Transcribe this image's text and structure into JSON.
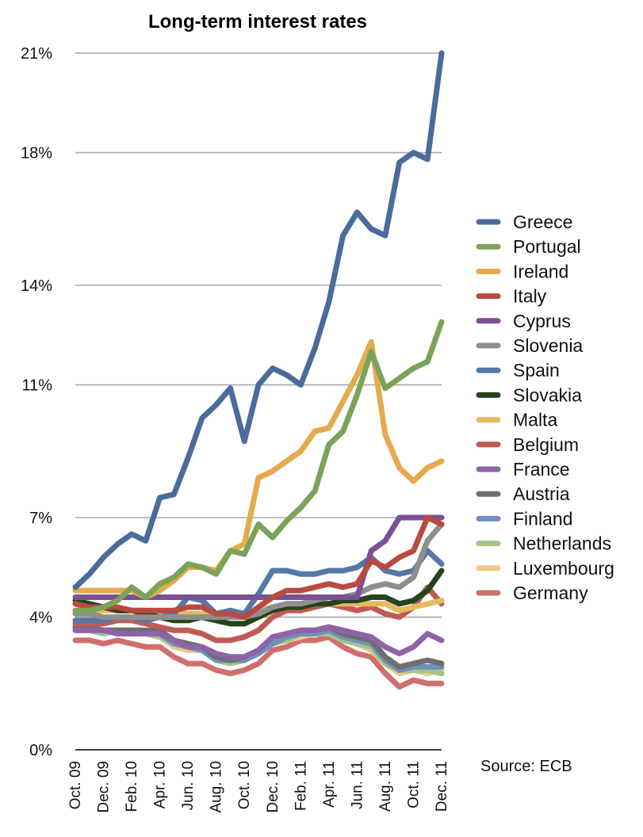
{
  "chart_data": {
    "type": "line",
    "title": "Long-term interest rates",
    "source_note": "Source: ECB",
    "ylim": [
      0,
      21
    ],
    "y_ticks": [
      0,
      4,
      7,
      11,
      14,
      18,
      21
    ],
    "y_tick_labels": [
      "0%",
      "4%",
      "7%",
      "11%",
      "14%",
      "18%",
      "21%"
    ],
    "x_tick_labels": [
      "Oct. 09",
      "Dec. 09",
      "Feb. 10",
      "Apr. 10",
      "Jun. 10",
      "Aug. 10",
      "Oct. 10",
      "Dec. 10",
      "Feb. 11",
      "Apr. 11",
      "Jun. 11",
      "Aug. 11",
      "Oct. 11",
      "Dec. 11"
    ],
    "x_tick_every": 2,
    "grid": "horizontal",
    "legend_position": "right",
    "categories": [
      "Oct. 09",
      "Nov. 09",
      "Dec. 09",
      "Jan. 10",
      "Feb. 10",
      "Mar. 10",
      "Apr. 10",
      "May 10",
      "Jun. 10",
      "Jul. 10",
      "Aug. 10",
      "Sep. 10",
      "Oct. 10",
      "Nov. 10",
      "Dec. 10",
      "Jan. 11",
      "Feb. 11",
      "Mar. 11",
      "Apr. 11",
      "May 11",
      "Jun. 11",
      "Jul. 11",
      "Aug. 11",
      "Sep. 11",
      "Oct. 11",
      "Nov. 11",
      "Dec. 11"
    ],
    "series": [
      {
        "name": "Greece",
        "color": "#4a6b9c",
        "values": [
          4.9,
          5.3,
          5.8,
          6.2,
          6.5,
          6.3,
          7.6,
          7.7,
          8.8,
          10.0,
          10.4,
          10.9,
          9.3,
          11.0,
          11.5,
          11.3,
          11.0,
          12.1,
          13.5,
          15.5,
          16.2,
          15.7,
          15.5,
          17.7,
          18.0,
          17.8,
          21.0
        ]
      },
      {
        "name": "Portugal",
        "color": "#7aa35a",
        "values": [
          4.2,
          4.2,
          4.3,
          4.5,
          4.9,
          4.6,
          5.0,
          5.2,
          5.6,
          5.5,
          5.3,
          6.0,
          5.9,
          6.8,
          6.4,
          6.9,
          7.3,
          7.8,
          9.2,
          9.6,
          10.7,
          12.0,
          10.9,
          11.2,
          11.5,
          11.7,
          12.9
        ]
      },
      {
        "name": "Ireland",
        "color": "#e4aa4c",
        "values": [
          4.8,
          4.8,
          4.8,
          4.8,
          4.8,
          4.6,
          4.8,
          5.1,
          5.5,
          5.5,
          5.4,
          6.0,
          6.2,
          8.2,
          8.4,
          8.7,
          9.0,
          9.6,
          9.7,
          10.5,
          11.3,
          12.3,
          9.5,
          8.5,
          8.1,
          8.5,
          8.7
        ]
      },
      {
        "name": "Italy",
        "color": "#b84a42",
        "values": [
          4.4,
          4.3,
          4.3,
          4.3,
          4.2,
          4.2,
          4.2,
          4.2,
          4.3,
          4.3,
          4.1,
          4.1,
          4.0,
          4.3,
          4.6,
          4.8,
          4.8,
          4.9,
          5.0,
          4.9,
          5.0,
          5.7,
          5.5,
          5.8,
          6.0,
          7.0,
          6.8
        ]
      },
      {
        "name": "Cyprus",
        "color": "#7a5196",
        "values": [
          4.6,
          4.6,
          4.6,
          4.6,
          4.6,
          4.6,
          4.6,
          4.6,
          4.6,
          4.6,
          4.6,
          4.6,
          4.6,
          4.6,
          4.6,
          4.6,
          4.6,
          4.6,
          4.6,
          4.6,
          4.6,
          6.0,
          6.3,
          7.0,
          7.0,
          7.0,
          7.0
        ]
      },
      {
        "name": "Slovenia",
        "color": "#8e8e8e",
        "values": [
          4.1,
          4.1,
          4.0,
          4.0,
          4.0,
          4.0,
          4.0,
          4.0,
          4.0,
          4.0,
          4.0,
          4.0,
          4.0,
          4.1,
          4.3,
          4.4,
          4.4,
          4.5,
          4.6,
          4.6,
          4.7,
          4.9,
          5.0,
          4.9,
          5.2,
          6.3,
          6.8
        ]
      },
      {
        "name": "Spain",
        "color": "#5578a8",
        "values": [
          3.9,
          3.9,
          3.9,
          4.0,
          4.0,
          3.9,
          4.0,
          4.1,
          4.6,
          4.5,
          4.1,
          4.2,
          4.1,
          4.7,
          5.4,
          5.4,
          5.3,
          5.3,
          5.4,
          5.4,
          5.5,
          5.8,
          5.4,
          5.3,
          5.4,
          6.0,
          5.6
        ]
      },
      {
        "name": "Slovakia",
        "color": "#26441c",
        "values": [
          4.5,
          4.4,
          4.3,
          4.2,
          4.2,
          4.1,
          4.0,
          3.9,
          3.9,
          4.0,
          3.9,
          3.8,
          3.8,
          4.0,
          4.2,
          4.3,
          4.3,
          4.4,
          4.4,
          4.5,
          4.5,
          4.6,
          4.6,
          4.4,
          4.5,
          4.8,
          5.4
        ]
      },
      {
        "name": "Malta",
        "color": "#e6ba60",
        "values": [
          4.2,
          4.2,
          4.2,
          4.2,
          4.2,
          4.2,
          4.1,
          4.1,
          4.1,
          4.1,
          4.1,
          4.1,
          4.1,
          4.2,
          4.3,
          4.3,
          4.3,
          4.4,
          4.4,
          4.4,
          4.4,
          4.4,
          4.4,
          4.2,
          4.3,
          4.4,
          4.5
        ]
      },
      {
        "name": "Belgium",
        "color": "#c05a55",
        "values": [
          3.8,
          3.8,
          3.8,
          3.9,
          3.9,
          3.8,
          3.7,
          3.6,
          3.6,
          3.5,
          3.3,
          3.3,
          3.4,
          3.6,
          4.0,
          4.2,
          4.2,
          4.3,
          4.4,
          4.3,
          4.2,
          4.3,
          4.1,
          4.0,
          4.3,
          4.9,
          4.4
        ]
      },
      {
        "name": "France",
        "color": "#8e63a8",
        "values": [
          3.6,
          3.6,
          3.6,
          3.5,
          3.5,
          3.5,
          3.5,
          3.3,
          3.1,
          3.1,
          2.9,
          2.8,
          2.8,
          3.0,
          3.4,
          3.5,
          3.6,
          3.6,
          3.7,
          3.6,
          3.5,
          3.4,
          3.1,
          2.9,
          3.1,
          3.5,
          3.3
        ]
      },
      {
        "name": "Austria",
        "color": "#6e6e6e",
        "values": [
          3.7,
          3.7,
          3.6,
          3.6,
          3.6,
          3.6,
          3.6,
          3.3,
          3.2,
          3.1,
          2.8,
          2.7,
          2.8,
          3.0,
          3.4,
          3.5,
          3.6,
          3.6,
          3.7,
          3.5,
          3.4,
          3.3,
          2.8,
          2.5,
          2.6,
          2.7,
          2.6
        ]
      },
      {
        "name": "Finland",
        "color": "#7090bc",
        "values": [
          3.7,
          3.7,
          3.6,
          3.6,
          3.6,
          3.5,
          3.5,
          3.2,
          3.1,
          3.0,
          2.7,
          2.7,
          2.7,
          2.9,
          3.2,
          3.4,
          3.5,
          3.5,
          3.6,
          3.4,
          3.3,
          3.2,
          2.7,
          2.4,
          2.5,
          2.5,
          2.5
        ]
      },
      {
        "name": "Netherlands",
        "color": "#a4c486",
        "values": [
          3.6,
          3.6,
          3.5,
          3.6,
          3.6,
          3.5,
          3.4,
          3.2,
          3.1,
          3.0,
          2.7,
          2.6,
          2.7,
          2.9,
          3.2,
          3.3,
          3.5,
          3.5,
          3.5,
          3.3,
          3.2,
          3.1,
          2.6,
          2.4,
          2.4,
          2.4,
          2.3
        ]
      },
      {
        "name": "Luxembourg",
        "color": "#ecc98a",
        "values": [
          3.7,
          3.7,
          3.6,
          3.6,
          3.6,
          3.5,
          3.4,
          3.1,
          3.0,
          3.0,
          2.8,
          2.7,
          2.7,
          2.9,
          3.2,
          3.3,
          3.4,
          3.5,
          3.5,
          3.3,
          3.2,
          3.0,
          2.6,
          2.3,
          2.4,
          2.3,
          2.4
        ]
      },
      {
        "name": "Germany",
        "color": "#cf6f6d",
        "values": [
          3.3,
          3.3,
          3.2,
          3.3,
          3.2,
          3.1,
          3.1,
          2.8,
          2.6,
          2.6,
          2.4,
          2.3,
          2.4,
          2.6,
          3.0,
          3.1,
          3.3,
          3.3,
          3.4,
          3.1,
          2.9,
          2.8,
          2.3,
          1.9,
          2.1,
          2.0,
          2.0
        ]
      }
    ]
  }
}
